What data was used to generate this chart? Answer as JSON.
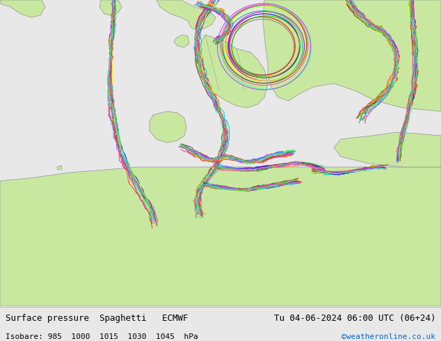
{
  "title_left": "Surface pressure  Spaghetti   ECMWF",
  "title_right": "Tu 04-06-2024 06:00 UTC (06+24)",
  "subtitle_left": "Isobare: 985  1000  1015  1030  1045  hPa",
  "subtitle_right": "©weatheronline.co.uk",
  "subtitle_right_color": "#0066cc",
  "bg_color": "#e8e8e8",
  "text_color": "#000000",
  "font_size_title": 9,
  "font_size_subtitle": 8,
  "map_bg_land": "#c8e8a0",
  "map_bg_sea": "#e0e0e0",
  "bottom_bar_bg": "#d8d8d8",
  "border_color": "#aaaaaa",
  "spaghetti_colors": [
    "#808080",
    "#ff0000",
    "#00cc00",
    "#0000ff",
    "#ff8800",
    "#cc00cc",
    "#00cccc",
    "#ffff00",
    "#884400",
    "#ff44aa",
    "#44ffaa",
    "#aa44ff",
    "#44aaff",
    "#ff4444",
    "#44ff44"
  ],
  "line_width": 0.8
}
